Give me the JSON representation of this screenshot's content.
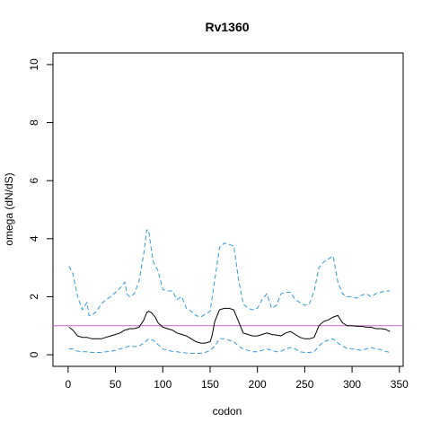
{
  "chart_data": {
    "type": "line",
    "title": "Rv1360",
    "xlabel": "codon",
    "ylabel": "omega (dN/dS)",
    "xlim": [
      -16,
      354
    ],
    "ylim": [
      -0.4,
      10.4
    ],
    "xticks": [
      0,
      50,
      100,
      150,
      200,
      250,
      300,
      350
    ],
    "yticks": [
      0,
      2,
      4,
      6,
      8,
      10
    ],
    "grid": false,
    "legend": "none",
    "reference_line": {
      "y": 1,
      "color": "#cc66cc"
    },
    "series": [
      {
        "role": "estimate",
        "style": "solid",
        "color": "#000000",
        "x": [
          1,
          5,
          10,
          15,
          20,
          25,
          30,
          35,
          40,
          45,
          50,
          55,
          60,
          65,
          70,
          75,
          80,
          83,
          85,
          88,
          92,
          95,
          100,
          105,
          110,
          115,
          120,
          125,
          130,
          135,
          140,
          145,
          150,
          152,
          155,
          160,
          165,
          170,
          175,
          180,
          185,
          190,
          195,
          200,
          205,
          210,
          215,
          220,
          225,
          230,
          235,
          240,
          245,
          250,
          255,
          260,
          265,
          270,
          275,
          280,
          285,
          290,
          295,
          300,
          305,
          310,
          315,
          320,
          325,
          330,
          335,
          340
        ],
        "y": [
          0.95,
          0.85,
          0.65,
          0.6,
          0.6,
          0.55,
          0.55,
          0.55,
          0.6,
          0.65,
          0.7,
          0.75,
          0.85,
          0.9,
          0.9,
          0.95,
          1.2,
          1.45,
          1.5,
          1.45,
          1.3,
          1.1,
          0.95,
          0.9,
          0.85,
          0.75,
          0.7,
          0.65,
          0.55,
          0.45,
          0.4,
          0.4,
          0.45,
          0.65,
          1.15,
          1.55,
          1.6,
          1.6,
          1.55,
          1.15,
          0.75,
          0.7,
          0.65,
          0.65,
          0.7,
          0.75,
          0.7,
          0.68,
          0.65,
          0.75,
          0.8,
          0.7,
          0.6,
          0.55,
          0.55,
          0.6,
          1.0,
          1.15,
          1.2,
          1.3,
          1.35,
          1.1,
          1.0,
          1.0,
          0.98,
          0.98,
          0.95,
          0.95,
          0.9,
          0.9,
          0.88,
          0.8
        ]
      },
      {
        "role": "upper",
        "style": "dashed",
        "color": "#3399dd",
        "x": [
          1,
          5,
          10,
          15,
          20,
          22,
          25,
          30,
          35,
          40,
          45,
          50,
          55,
          60,
          62,
          65,
          70,
          75,
          80,
          83,
          85,
          88,
          90,
          95,
          100,
          105,
          110,
          115,
          120,
          125,
          130,
          135,
          140,
          145,
          150,
          155,
          160,
          165,
          170,
          175,
          180,
          185,
          190,
          195,
          200,
          205,
          210,
          215,
          220,
          225,
          230,
          235,
          240,
          245,
          250,
          255,
          260,
          265,
          270,
          275,
          280,
          285,
          290,
          295,
          300,
          305,
          310,
          315,
          320,
          325,
          330,
          335,
          340
        ],
        "y": [
          3.05,
          2.8,
          2.0,
          1.55,
          1.8,
          1.35,
          1.35,
          1.5,
          1.75,
          1.9,
          2.0,
          2.15,
          2.3,
          2.5,
          2.1,
          2.0,
          2.1,
          2.55,
          3.5,
          4.3,
          4.3,
          3.6,
          3.2,
          2.9,
          2.25,
          2.2,
          2.2,
          1.9,
          2.0,
          1.6,
          1.5,
          1.35,
          1.3,
          1.4,
          1.5,
          2.6,
          3.7,
          3.85,
          3.8,
          3.75,
          2.6,
          1.75,
          1.6,
          1.55,
          1.6,
          1.9,
          2.1,
          1.6,
          1.7,
          2.1,
          2.15,
          2.15,
          1.9,
          1.8,
          1.7,
          1.75,
          2.2,
          3.0,
          3.2,
          3.3,
          3.4,
          2.5,
          2.1,
          2.0,
          2.0,
          1.95,
          2.05,
          2.1,
          2.0,
          2.1,
          2.15,
          2.2,
          2.2
        ]
      },
      {
        "role": "lower",
        "style": "dashed",
        "color": "#3399dd",
        "x": [
          1,
          5,
          10,
          15,
          20,
          25,
          30,
          35,
          40,
          45,
          50,
          55,
          60,
          65,
          70,
          75,
          80,
          85,
          90,
          95,
          100,
          105,
          110,
          115,
          120,
          125,
          130,
          135,
          140,
          145,
          150,
          155,
          160,
          165,
          170,
          175,
          180,
          185,
          190,
          195,
          200,
          205,
          210,
          215,
          220,
          225,
          230,
          235,
          240,
          245,
          250,
          255,
          260,
          265,
          270,
          275,
          280,
          285,
          290,
          295,
          300,
          305,
          310,
          315,
          320,
          325,
          330,
          335,
          340
        ],
        "y": [
          0.2,
          0.2,
          0.12,
          0.1,
          0.1,
          0.08,
          0.08,
          0.08,
          0.1,
          0.12,
          0.15,
          0.2,
          0.25,
          0.3,
          0.28,
          0.3,
          0.4,
          0.55,
          0.5,
          0.35,
          0.2,
          0.15,
          0.12,
          0.1,
          0.08,
          0.06,
          0.05,
          0.05,
          0.05,
          0.08,
          0.15,
          0.3,
          0.55,
          0.55,
          0.5,
          0.45,
          0.3,
          0.2,
          0.15,
          0.1,
          0.1,
          0.15,
          0.2,
          0.15,
          0.1,
          0.12,
          0.2,
          0.25,
          0.2,
          0.1,
          0.08,
          0.08,
          0.1,
          0.3,
          0.45,
          0.5,
          0.55,
          0.4,
          0.3,
          0.22,
          0.2,
          0.18,
          0.15,
          0.2,
          0.25,
          0.2,
          0.18,
          0.12,
          0.08
        ]
      }
    ]
  }
}
